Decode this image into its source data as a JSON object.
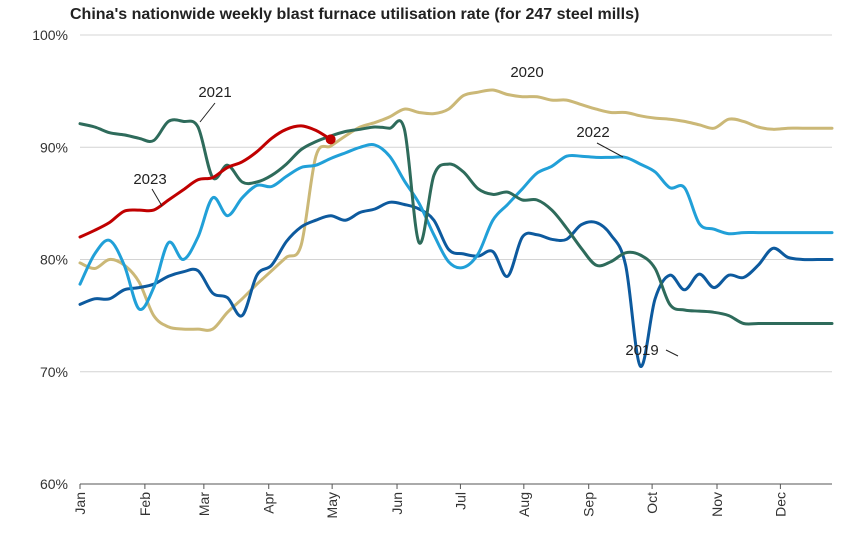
{
  "chart_data": {
    "type": "line",
    "title": "China's nationwide weekly blast furnace utilisation rate (for 247 steel mills)",
    "xlabel": "",
    "ylabel": "",
    "y_ticks": [
      "60%",
      "70%",
      "80%",
      "90%",
      "100%"
    ],
    "ylim": [
      60,
      100
    ],
    "xlim": [
      1,
      52
    ],
    "x_unit": "week of year",
    "grid": "horizontal",
    "x_ticks": [
      {
        "label": "Jan",
        "x": 1
      },
      {
        "label": "Feb",
        "x": 5.4
      },
      {
        "label": "Mar",
        "x": 9.4
      },
      {
        "label": "Apr",
        "x": 13.8
      },
      {
        "label": "May",
        "x": 18.1
      },
      {
        "label": "Jun",
        "x": 22.5
      },
      {
        "label": "Jul",
        "x": 26.8
      },
      {
        "label": "Aug",
        "x": 31.1
      },
      {
        "label": "Sep",
        "x": 35.5
      },
      {
        "label": "Oct",
        "x": 39.8
      },
      {
        "label": "Nov",
        "x": 44.2
      },
      {
        "label": "Dec",
        "x": 48.5
      }
    ],
    "series": [
      {
        "name": "2019",
        "color": "#0d5a9e",
        "x": [
          1,
          2,
          3,
          4,
          5,
          6,
          7,
          8,
          9,
          10,
          11,
          12,
          13,
          14,
          15,
          16,
          17,
          18,
          19,
          20,
          21,
          22,
          23,
          24,
          25,
          26,
          27,
          28,
          29,
          30,
          31,
          32,
          33,
          34,
          35,
          36,
          37,
          38,
          39,
          40,
          41,
          42,
          43,
          44,
          45,
          46,
          47,
          48,
          49,
          50,
          51,
          52
        ],
        "y": [
          76,
          76.5,
          76.5,
          77.3,
          77.5,
          77.8,
          78.5,
          78.9,
          79,
          77,
          76.6,
          75,
          78.6,
          79.5,
          81.6,
          82.9,
          83.5,
          83.9,
          83.5,
          84.2,
          84.5,
          85.1,
          84.9,
          84.5,
          83.5,
          80.9,
          80.5,
          80.3,
          80.7,
          78.5,
          82,
          82.2,
          81.8,
          81.8,
          83.1,
          83.3,
          82.2,
          79.5,
          70.5,
          76.5,
          78.6,
          77.3,
          78.7,
          77.5,
          78.6,
          78.4,
          79.5,
          81,
          80.2,
          80,
          80,
          80
        ]
      },
      {
        "name": "2020",
        "color": "#cbb877",
        "x": [
          1,
          2,
          3,
          4,
          5,
          6,
          7,
          8,
          9,
          10,
          11,
          12,
          13,
          14,
          15,
          16,
          17,
          18,
          19,
          20,
          21,
          22,
          23,
          24,
          25,
          26,
          27,
          28,
          29,
          30,
          31,
          32,
          33,
          34,
          35,
          36,
          37,
          38,
          39,
          40,
          41,
          42,
          43,
          44,
          45,
          46,
          47,
          48,
          49,
          50,
          51,
          52
        ],
        "y": [
          79.7,
          79.2,
          80,
          79.5,
          78,
          75,
          74,
          73.8,
          73.8,
          73.8,
          75.3,
          76.5,
          77.8,
          79,
          80.2,
          81.3,
          89.2,
          90.1,
          91,
          91.8,
          92.2,
          92.7,
          93.4,
          93.1,
          93,
          93.4,
          94.6,
          94.9,
          95.1,
          94.7,
          94.5,
          94.5,
          94.2,
          94.2,
          93.8,
          93.4,
          93.1,
          93.1,
          92.8,
          92.6,
          92.5,
          92.3,
          92,
          91.7,
          92.5,
          92.3,
          91.8,
          91.6,
          91.7,
          91.7,
          91.7,
          91.7
        ]
      },
      {
        "name": "2021",
        "color": "#2e6b5b",
        "x": [
          1,
          2,
          3,
          4,
          5,
          6,
          7,
          8,
          9,
          10,
          11,
          12,
          13,
          14,
          15,
          16,
          17,
          18,
          19,
          20,
          21,
          22,
          23,
          24,
          25,
          26,
          27,
          28,
          29,
          30,
          31,
          32,
          33,
          34,
          35,
          36,
          37,
          38,
          39,
          40,
          41,
          42,
          43,
          44,
          45,
          46,
          47,
          48,
          49,
          50,
          51,
          52
        ],
        "y": [
          92.1,
          91.8,
          91.3,
          91.1,
          90.8,
          90.6,
          92.3,
          92.3,
          91.8,
          87.3,
          88.4,
          86.9,
          86.9,
          87.5,
          88.5,
          89.8,
          90.5,
          91,
          91.4,
          91.6,
          91.8,
          91.7,
          91.6,
          81.5,
          87.5,
          88.5,
          87.8,
          86.3,
          85.8,
          86,
          85.3,
          85.3,
          84.4,
          82.8,
          81,
          79.5,
          79.8,
          80.6,
          80.4,
          79.2,
          76,
          75.5,
          75.4,
          75.3,
          75,
          74.3,
          74.3,
          74.3,
          74.3,
          74.3,
          74.3,
          74.3
        ]
      },
      {
        "name": "2022",
        "color": "#21a0d8",
        "x": [
          1,
          2,
          3,
          4,
          5,
          6,
          7,
          8,
          9,
          10,
          11,
          12,
          13,
          14,
          15,
          16,
          17,
          18,
          19,
          20,
          21,
          22,
          23,
          24,
          25,
          26,
          27,
          28,
          29,
          30,
          31,
          32,
          33,
          34,
          35,
          36,
          37,
          38,
          39,
          40,
          41,
          42,
          43,
          44,
          45,
          46,
          47,
          48,
          49,
          50,
          51,
          52
        ],
        "y": [
          77.8,
          80.5,
          81.7,
          79.5,
          75.6,
          77.5,
          81.5,
          80,
          82,
          85.5,
          83.9,
          85.5,
          86.6,
          86.5,
          87.4,
          88.2,
          88.4,
          89,
          89.5,
          90,
          90.2,
          89.2,
          87,
          85,
          82.2,
          79.8,
          79.3,
          80.5,
          83.5,
          84.9,
          86.3,
          87.7,
          88.3,
          89.2,
          89.2,
          89.1,
          89.1,
          89.1,
          88.5,
          87.8,
          86.4,
          86.4,
          83.2,
          82.7,
          82.3,
          82.4,
          82.4,
          82.4,
          82.4,
          82.4,
          82.4,
          82.4
        ]
      },
      {
        "name": "2023",
        "color": "#c00000",
        "x": [
          1,
          2,
          3,
          4,
          5,
          6,
          7,
          8,
          9,
          10,
          11,
          12,
          13,
          14,
          15,
          16,
          17,
          18
        ],
        "y": [
          82,
          82.6,
          83.3,
          84.3,
          84.4,
          84.4,
          85.3,
          86.2,
          87.1,
          87.3,
          88.2,
          88.7,
          89.6,
          90.8,
          91.6,
          91.9,
          91.5,
          90.7
        ]
      }
    ],
    "annotations": [
      "2019",
      "2020",
      "2021",
      "2022",
      "2023"
    ]
  }
}
